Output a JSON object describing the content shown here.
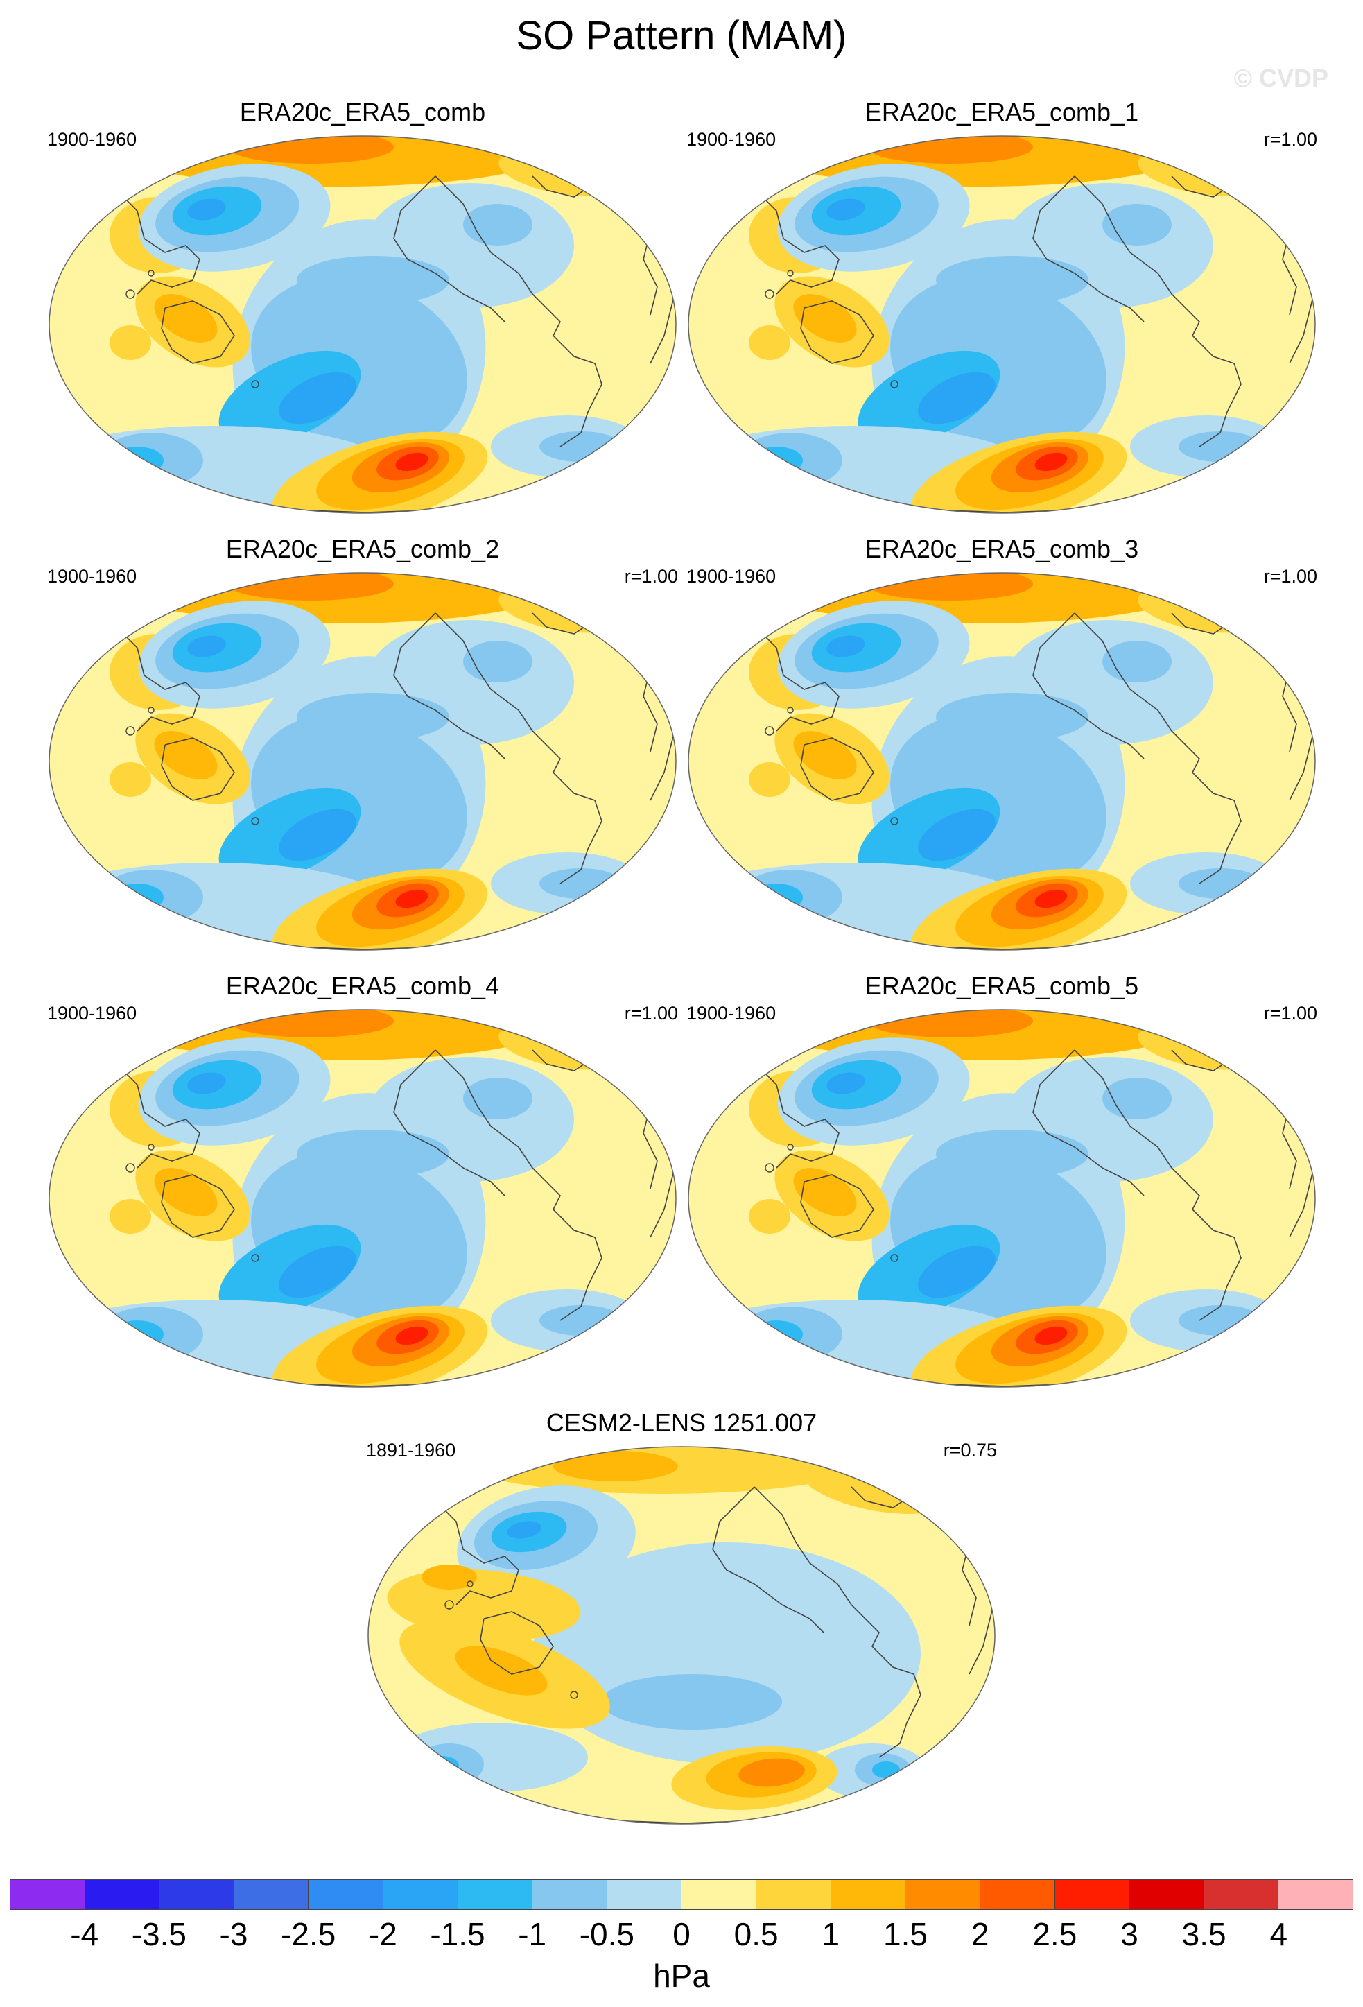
{
  "figure": {
    "title": "SO Pattern (MAM)",
    "watermark": "© CVDP",
    "units": "hPa"
  },
  "colorbar": {
    "colors": [
      "#8e2bf0",
      "#2a1bf0",
      "#2d3ae8",
      "#3e6ee6",
      "#2e8cf2",
      "#2aa4f4",
      "#2dbaf3",
      "#86c7ef",
      "#b4ddf2",
      "#fff5a0",
      "#fed63c",
      "#ffb708",
      "#ff8c00",
      "#ff5a00",
      "#ff1f00",
      "#e00000",
      "#d8302f",
      "#ffb1b8"
    ],
    "labels": [
      "-4",
      "-3.5",
      "-3",
      "-2.5",
      "-2",
      "-1.5",
      "-1",
      "-0.5",
      "0",
      "0.5",
      "1",
      "1.5",
      "2",
      "2.5",
      "3",
      "3.5",
      "4"
    ]
  },
  "panels": [
    {
      "title": "ERA20c_ERA5_comb",
      "period": "1900-1960",
      "corr": "",
      "variant": "obs"
    },
    {
      "title": "ERA20c_ERA5_comb_1",
      "period": "1900-1960",
      "corr": "r=1.00",
      "variant": "obs"
    },
    {
      "title": "ERA20c_ERA5_comb_2",
      "period": "1900-1960",
      "corr": "r=1.00",
      "variant": "obs"
    },
    {
      "title": "ERA20c_ERA5_comb_3",
      "period": "1900-1960",
      "corr": "r=1.00",
      "variant": "obs"
    },
    {
      "title": "ERA20c_ERA5_comb_4",
      "period": "1900-1960",
      "corr": "r=1.00",
      "variant": "obs"
    },
    {
      "title": "ERA20c_ERA5_comb_5",
      "period": "1900-1960",
      "corr": "r=1.00",
      "variant": "obs"
    },
    {
      "title": "CESM2-LENS 1251.007",
      "period": "1891-1960",
      "corr": "r=0.75",
      "variant": "model"
    }
  ]
}
